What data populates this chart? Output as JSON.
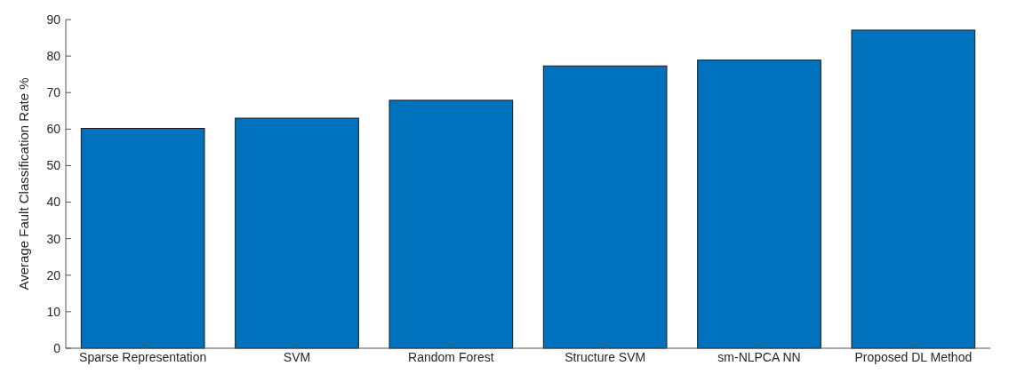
{
  "chart_data": {
    "type": "bar",
    "ylabel": "Average Fault Classification Rate %",
    "categories": [
      "Sparse Representation",
      "SVM",
      "Random Forest",
      "Structure SVM",
      "sm-NLPCA NN",
      "Proposed DL Method"
    ],
    "values": [
      60.2,
      63.0,
      67.9,
      77.3,
      78.9,
      87.1
    ],
    "color": "#0072bd",
    "ylim": [
      0,
      90
    ],
    "yticks": [
      0,
      10,
      20,
      30,
      40,
      50,
      60,
      70,
      80,
      90
    ]
  }
}
